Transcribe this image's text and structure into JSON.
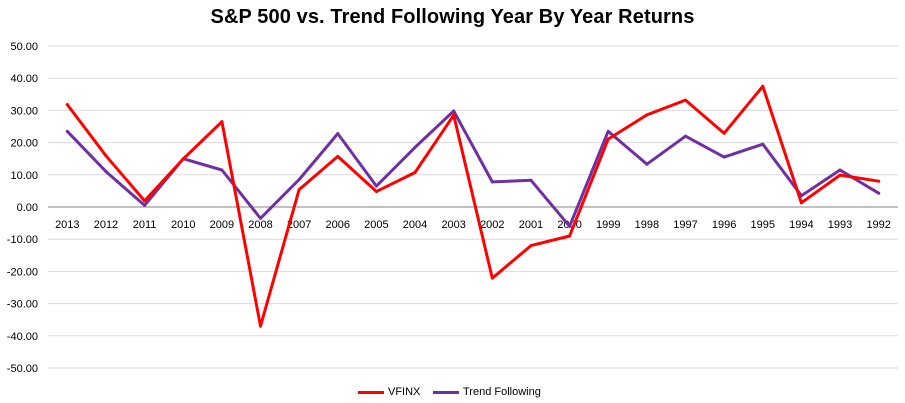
{
  "chart_data": {
    "type": "line",
    "title": "S&P 500 vs. Trend Following Year By Year Returns",
    "xlabel": "",
    "ylabel": "",
    "categories": [
      "2013",
      "2012",
      "2011",
      "2010",
      "2009",
      "2008",
      "2007",
      "2006",
      "2005",
      "2004",
      "2003",
      "2002",
      "2001",
      "2000",
      "1999",
      "1998",
      "1997",
      "1996",
      "1995",
      "1994",
      "1993",
      "1992"
    ],
    "y_tick_labels": [
      "50.00",
      "40.00",
      "30.00",
      "20.00",
      "10.00",
      "0.00",
      "-10.00",
      "-20.00",
      "-30.00",
      "-40.00",
      "-50.00"
    ],
    "ylim": [
      -50,
      50
    ],
    "grid": "horizontal",
    "legend_position": "bottom",
    "series": [
      {
        "name": "VFINX",
        "color": "#ff0000",
        "values": [
          31.8,
          15.9,
          1.9,
          14.9,
          26.5,
          -37.0,
          5.4,
          15.7,
          4.8,
          10.7,
          28.5,
          -22.1,
          -12.0,
          -9.0,
          21.1,
          28.6,
          33.2,
          22.9,
          37.5,
          1.3,
          9.9,
          8.0
        ]
      },
      {
        "name": "Trend Following",
        "color": "#7030a0",
        "values": [
          23.5,
          11.0,
          0.5,
          15.0,
          11.5,
          -3.5,
          8.5,
          22.8,
          6.5,
          18.5,
          29.8,
          7.8,
          8.3,
          -6.0,
          23.5,
          13.3,
          22.0,
          15.5,
          19.5,
          3.5,
          11.5,
          4.3
        ]
      }
    ]
  }
}
